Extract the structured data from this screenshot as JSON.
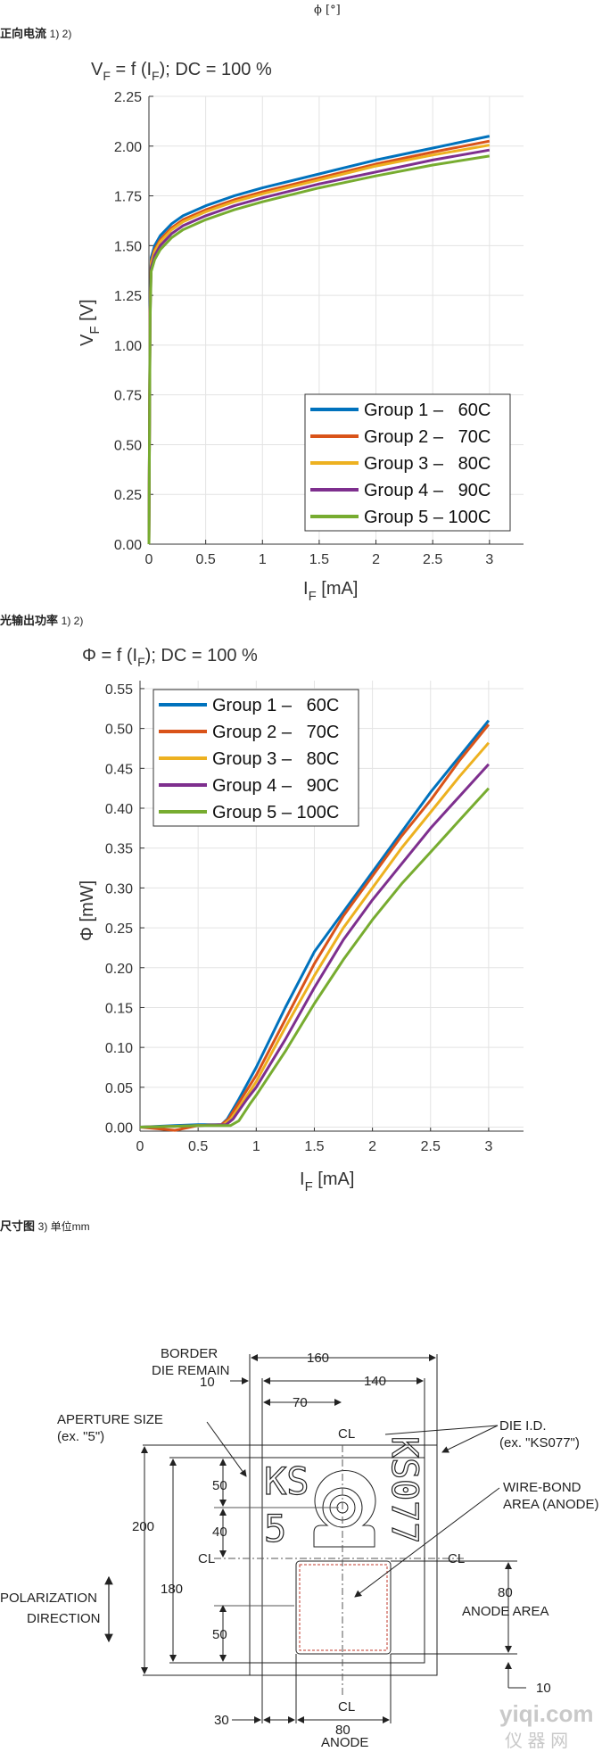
{
  "header": {
    "phi_label": "ϕ [°]"
  },
  "section1": {
    "title": "正向电流",
    "sup": "1) 2)"
  },
  "section2": {
    "title": "光输出功率",
    "sup": "1) 2)"
  },
  "section3": {
    "title": "尺寸图",
    "sup": "3) 单位mm"
  },
  "colors": {
    "g1": "#0072BD",
    "g2": "#D95319",
    "g3": "#EDB120",
    "g4": "#7E2F8E",
    "g5": "#77AC30"
  },
  "chart_data": [
    {
      "type": "line",
      "title": "V_F = f (I_F); DC = 100 %",
      "title_main": "V",
      "title_sub1": "F",
      "title_mid": " = f (I",
      "title_sub2": "F",
      "title_end": "); DC = 100 %",
      "xlabel": "I_F [mA]",
      "xlabel_main": "I",
      "xlabel_sub": "F",
      "xlabel_unit": " [mA]",
      "ylabel": "V_F [V]",
      "ylabel_main": "V",
      "ylabel_sub": "F",
      "ylabel_unit": " [V]",
      "xlim": [
        0,
        3.3
      ],
      "ylim": [
        0,
        2.25
      ],
      "xticks": [
        "0",
        "0.5",
        "1",
        "1.5",
        "2",
        "2.5",
        "3"
      ],
      "yticks": [
        "0.00",
        "0.25",
        "0.50",
        "0.75",
        "1.00",
        "1.25",
        "1.50",
        "1.75",
        "2.00",
        "2.25"
      ],
      "grid": true,
      "legend_position": "bottom-right",
      "x": [
        0,
        0.01,
        0.02,
        0.05,
        0.1,
        0.2,
        0.3,
        0.5,
        0.75,
        1.0,
        1.5,
        2.0,
        2.5,
        3.0
      ],
      "series": [
        {
          "name": "Group 1 –   60C",
          "values": [
            0,
            1.2,
            1.44,
            1.5,
            1.55,
            1.61,
            1.65,
            1.7,
            1.75,
            1.79,
            1.86,
            1.93,
            1.99,
            2.05
          ]
        },
        {
          "name": "Group 2 –   70C",
          "values": [
            0,
            1.18,
            1.42,
            1.48,
            1.53,
            1.59,
            1.63,
            1.68,
            1.73,
            1.77,
            1.84,
            1.91,
            1.97,
            2.025
          ]
        },
        {
          "name": "Group 3 –   80C",
          "values": [
            0,
            1.16,
            1.41,
            1.47,
            1.52,
            1.58,
            1.62,
            1.67,
            1.72,
            1.76,
            1.83,
            1.9,
            1.955,
            2.005
          ]
        },
        {
          "name": "Group 4 –   90C",
          "values": [
            0,
            1.14,
            1.39,
            1.45,
            1.5,
            1.56,
            1.6,
            1.65,
            1.7,
            1.74,
            1.81,
            1.87,
            1.93,
            1.98
          ]
        },
        {
          "name": "Group 5 – 100C",
          "values": [
            0,
            1.12,
            1.37,
            1.43,
            1.48,
            1.54,
            1.58,
            1.63,
            1.68,
            1.72,
            1.79,
            1.85,
            1.905,
            1.95
          ]
        }
      ]
    },
    {
      "type": "line",
      "title": "Φ = f (I_F); DC = 100 %",
      "title_main": "Φ = f (I",
      "title_sub": "F",
      "title_end": "); DC = 100 %",
      "xlabel": "I_F [mA]",
      "xlabel_main": "I",
      "xlabel_sub": "F",
      "xlabel_unit": " [mA]",
      "ylabel": "Φ [mW]",
      "xlim": [
        0,
        3.3
      ],
      "ylim": [
        -0.005,
        0.56
      ],
      "xticks": [
        "0",
        "0.5",
        "1",
        "1.5",
        "2",
        "2.5",
        "3"
      ],
      "yticks": [
        "0.00",
        "0.05",
        "0.10",
        "0.15",
        "0.20",
        "0.25",
        "0.30",
        "0.35",
        "0.40",
        "0.45",
        "0.50",
        "0.55"
      ],
      "grid": true,
      "legend_position": "top-left",
      "series": [
        {
          "name": "Group 1 –   60C",
          "x": [
            0,
            0.3,
            0.5,
            0.7,
            0.75,
            0.85,
            1.0,
            1.25,
            1.5,
            1.75,
            2.0,
            2.25,
            2.5,
            2.75,
            3.0
          ],
          "values": [
            0,
            0.002,
            0.003,
            0.003,
            0.01,
            0.035,
            0.075,
            0.15,
            0.22,
            0.27,
            0.32,
            0.37,
            0.42,
            0.465,
            0.51
          ]
        },
        {
          "name": "Group 2 –   70C",
          "x": [
            0,
            0.3,
            0.5,
            0.7,
            0.76,
            0.87,
            1.0,
            1.25,
            1.5,
            1.75,
            2.0,
            2.25,
            2.5,
            2.75,
            3.0
          ],
          "values": [
            0,
            -0.004,
            0.002,
            0.003,
            0.01,
            0.035,
            0.065,
            0.135,
            0.205,
            0.265,
            0.315,
            0.365,
            0.41,
            0.46,
            0.505
          ]
        },
        {
          "name": "Group 3 –   80C",
          "x": [
            0,
            0.3,
            0.5,
            0.72,
            0.78,
            0.9,
            1.0,
            1.25,
            1.5,
            1.75,
            2.0,
            2.25,
            2.5,
            2.75,
            3.0
          ],
          "values": [
            0,
            0.001,
            0.002,
            0.003,
            0.01,
            0.035,
            0.057,
            0.125,
            0.19,
            0.25,
            0.3,
            0.35,
            0.395,
            0.44,
            0.482
          ]
        },
        {
          "name": "Group 4 –   90C",
          "x": [
            0,
            0.3,
            0.5,
            0.74,
            0.8,
            0.92,
            1.0,
            1.25,
            1.5,
            1.75,
            2.0,
            2.25,
            2.5,
            2.75,
            3.0
          ],
          "values": [
            0,
            0.001,
            0.002,
            0.003,
            0.01,
            0.035,
            0.05,
            0.11,
            0.175,
            0.235,
            0.285,
            0.33,
            0.375,
            0.415,
            0.455
          ]
        },
        {
          "name": "Group 5 – 100C",
          "x": [
            0,
            0.3,
            0.5,
            0.78,
            0.85,
            0.95,
            1.0,
            1.25,
            1.5,
            1.75,
            2.0,
            2.25,
            2.5,
            2.75,
            3.0
          ],
          "values": [
            0,
            0.001,
            0.002,
            0.002,
            0.008,
            0.03,
            0.04,
            0.095,
            0.155,
            0.21,
            0.26,
            0.305,
            0.345,
            0.385,
            0.425
          ]
        }
      ]
    }
  ],
  "drawing": {
    "border_die_remain": [
      "BORDER",
      "DIE REMAIN"
    ],
    "aperture_size": [
      "APERTURE SIZE",
      "(ex. \"5\")"
    ],
    "die_id": [
      "DIE I.D.",
      "(ex. \"KS077\")"
    ],
    "wire_bond": [
      "WIRE-BOND",
      "AREA (ANODE)"
    ],
    "polarization": [
      "POLARIZATION",
      "DIRECTION"
    ],
    "anode_area": "ANODE AREA",
    "anode": "ANODE",
    "ks": "KS",
    "five": "5",
    "ks077": "KS077",
    "cl": "CL",
    "dims": {
      "d160": "160",
      "d140": "140",
      "d70": "70",
      "d10a": "10",
      "d50a": "50",
      "d40": "40",
      "d200": "200",
      "d180": "180",
      "d50b": "50",
      "d80a": "80",
      "d10b": "10",
      "d30": "30",
      "d80b": "80"
    }
  },
  "watermark": {
    "url": "yiqi.com",
    "cn": "仪 器 网"
  }
}
